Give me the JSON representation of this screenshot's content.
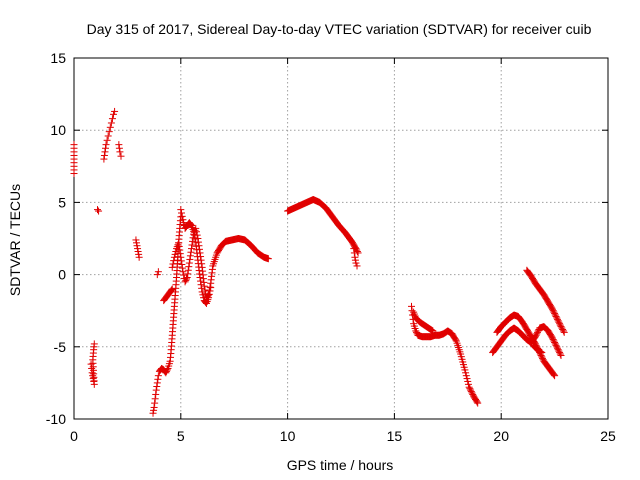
{
  "chart_data": {
    "type": "scatter",
    "title": "Day 315 of 2017, Sidereal Day-to-day VTEC variation (SDTVAR) for receiver cuib",
    "xlabel": "GPS time / hours",
    "ylabel": "SDTVAR / TECUs",
    "xlim": [
      0,
      25
    ],
    "ylim": [
      -10,
      15
    ],
    "xticks": [
      "0",
      "5",
      "10",
      "15",
      "20",
      "25"
    ],
    "yticks": [
      "15",
      "10",
      "5",
      "0",
      "-5",
      "-10"
    ],
    "grid": true,
    "marker": "plus",
    "color": "#e00000",
    "segments": [
      [
        [
          0.0,
          9.0
        ],
        [
          0.0,
          8.0
        ],
        [
          0.0,
          7.0
        ]
      ],
      [
        [
          0.8,
          -6.2
        ],
        [
          0.85,
          -6.8
        ],
        [
          0.9,
          -7.2
        ],
        [
          0.95,
          -7.6
        ],
        [
          0.88,
          -5.9
        ],
        [
          0.92,
          -5.2
        ],
        [
          0.95,
          -4.8
        ]
      ],
      [
        [
          1.1,
          4.5
        ],
        [
          1.15,
          4.4
        ]
      ],
      [
        [
          1.4,
          8.0
        ],
        [
          1.45,
          8.5
        ],
        [
          1.5,
          9.0
        ],
        [
          1.55,
          9.3
        ],
        [
          1.6,
          9.6
        ],
        [
          1.65,
          9.9
        ],
        [
          1.7,
          10.2
        ],
        [
          1.75,
          10.5
        ],
        [
          1.8,
          10.8
        ],
        [
          1.85,
          11.1
        ],
        [
          1.9,
          11.3
        ]
      ],
      [
        [
          2.1,
          9.0
        ],
        [
          2.15,
          8.5
        ],
        [
          2.2,
          8.2
        ]
      ],
      [
        [
          2.9,
          2.4
        ],
        [
          2.95,
          2.0
        ],
        [
          3.0,
          1.6
        ],
        [
          3.05,
          1.2
        ]
      ],
      [
        [
          3.7,
          -9.6
        ],
        [
          3.75,
          -9.2
        ],
        [
          3.8,
          -8.6
        ],
        [
          3.85,
          -8.0
        ],
        [
          3.9,
          -7.5
        ],
        [
          3.95,
          -7.0
        ],
        [
          4.0,
          -6.7
        ],
        [
          4.1,
          -6.5
        ],
        [
          4.2,
          -6.6
        ],
        [
          4.3,
          -6.8
        ],
        [
          4.4,
          -6.5
        ],
        [
          4.5,
          -6.0
        ],
        [
          4.55,
          -5.2
        ],
        [
          4.6,
          -4.2
        ],
        [
          4.65,
          -3.2
        ],
        [
          4.7,
          -2.2
        ],
        [
          4.75,
          -1.2
        ],
        [
          4.8,
          -0.2
        ],
        [
          4.85,
          1.0
        ],
        [
          4.9,
          2.2
        ],
        [
          4.95,
          3.2
        ],
        [
          5.0,
          4.0
        ]
      ],
      [
        [
          3.9,
          0.0
        ],
        [
          3.95,
          0.2
        ]
      ],
      [
        [
          4.2,
          -1.8
        ],
        [
          4.3,
          -1.6
        ],
        [
          4.4,
          -1.4
        ],
        [
          4.5,
          -1.2
        ],
        [
          4.6,
          -1.0
        ]
      ],
      [
        [
          4.6,
          0.5
        ],
        [
          4.7,
          1.2
        ],
        [
          4.8,
          1.8
        ],
        [
          4.9,
          2.2
        ],
        [
          5.0,
          1.2
        ],
        [
          5.1,
          0.2
        ],
        [
          5.2,
          -0.5
        ],
        [
          5.3,
          -0.2
        ],
        [
          5.4,
          0.8
        ],
        [
          5.5,
          1.8
        ],
        [
          5.6,
          2.8
        ],
        [
          5.7,
          3.2
        ],
        [
          5.8,
          2.5
        ],
        [
          5.9,
          1.5
        ],
        [
          6.0,
          0.5
        ],
        [
          6.1,
          -0.8
        ],
        [
          6.2,
          -1.6
        ],
        [
          6.3,
          -1.4
        ],
        [
          6.4,
          -0.6
        ],
        [
          6.5,
          0.6
        ],
        [
          6.7,
          1.5
        ],
        [
          6.9,
          2.0
        ],
        [
          7.1,
          2.3
        ],
        [
          7.4,
          2.4
        ],
        [
          7.7,
          2.5
        ],
        [
          8.0,
          2.4
        ],
        [
          8.3,
          2.0
        ],
        [
          8.6,
          1.5
        ],
        [
          8.9,
          1.2
        ],
        [
          9.1,
          1.1
        ]
      ],
      [
        [
          5.0,
          4.5
        ],
        [
          5.1,
          3.8
        ],
        [
          5.2,
          3.2
        ],
        [
          5.3,
          3.4
        ],
        [
          5.4,
          3.6
        ],
        [
          5.5,
          3.4
        ],
        [
          5.6,
          3.0
        ],
        [
          5.7,
          2.2
        ],
        [
          5.8,
          1.0
        ],
        [
          5.9,
          -0.2
        ],
        [
          6.0,
          -1.2
        ],
        [
          6.1,
          -1.8
        ],
        [
          6.2,
          -2.0
        ],
        [
          6.3,
          -1.6
        ],
        [
          6.4,
          -0.9
        ]
      ],
      [
        [
          10.0,
          4.4
        ],
        [
          10.3,
          4.6
        ],
        [
          10.6,
          4.8
        ],
        [
          10.9,
          5.0
        ],
        [
          11.2,
          5.2
        ],
        [
          11.5,
          5.0
        ],
        [
          11.8,
          4.6
        ],
        [
          12.1,
          4.0
        ],
        [
          12.4,
          3.4
        ],
        [
          12.7,
          2.9
        ],
        [
          13.0,
          2.3
        ],
        [
          13.2,
          1.8
        ],
        [
          13.3,
          1.5
        ]
      ],
      [
        [
          13.1,
          1.8
        ],
        [
          13.15,
          1.2
        ],
        [
          13.2,
          0.8
        ],
        [
          13.25,
          0.6
        ]
      ],
      [
        [
          15.8,
          -2.2
        ],
        [
          15.85,
          -2.8
        ],
        [
          15.9,
          -3.4
        ],
        [
          16.0,
          -3.9
        ],
        [
          16.1,
          -4.2
        ],
        [
          16.3,
          -4.3
        ],
        [
          16.5,
          -4.3
        ],
        [
          16.7,
          -4.3
        ],
        [
          16.9,
          -4.2
        ],
        [
          17.1,
          -4.2
        ],
        [
          17.3,
          -4.1
        ],
        [
          17.5,
          -3.9
        ],
        [
          17.7,
          -4.1
        ],
        [
          17.9,
          -4.6
        ],
        [
          18.1,
          -5.5
        ],
        [
          18.3,
          -6.6
        ],
        [
          18.5,
          -7.8
        ],
        [
          18.7,
          -8.4
        ],
        [
          18.9,
          -8.9
        ]
      ],
      [
        [
          15.9,
          -2.6
        ],
        [
          16.0,
          -3.0
        ],
        [
          16.2,
          -3.3
        ],
        [
          16.4,
          -3.5
        ],
        [
          16.6,
          -3.7
        ],
        [
          16.8,
          -3.9
        ]
      ],
      [
        [
          19.6,
          -5.4
        ],
        [
          19.8,
          -5.0
        ],
        [
          20.0,
          -4.6
        ],
        [
          20.2,
          -4.2
        ],
        [
          20.4,
          -3.9
        ],
        [
          20.6,
          -3.7
        ],
        [
          20.8,
          -3.9
        ],
        [
          21.0,
          -4.2
        ],
        [
          21.2,
          -4.5
        ],
        [
          21.4,
          -4.7
        ],
        [
          21.6,
          -4.3
        ],
        [
          21.8,
          -3.7
        ],
        [
          22.0,
          -3.6
        ],
        [
          22.2,
          -3.9
        ],
        [
          22.4,
          -4.4
        ],
        [
          22.6,
          -5.0
        ],
        [
          22.8,
          -5.6
        ]
      ],
      [
        [
          19.8,
          -4.0
        ],
        [
          20.0,
          -3.6
        ],
        [
          20.2,
          -3.3
        ],
        [
          20.4,
          -3.0
        ],
        [
          20.6,
          -2.8
        ],
        [
          20.8,
          -2.9
        ],
        [
          21.0,
          -3.3
        ],
        [
          21.2,
          -3.8
        ],
        [
          21.4,
          -4.3
        ],
        [
          21.6,
          -4.8
        ],
        [
          21.8,
          -5.4
        ],
        [
          22.0,
          -6.0
        ],
        [
          22.2,
          -6.4
        ],
        [
          22.4,
          -6.8
        ],
        [
          22.5,
          -7.0
        ]
      ],
      [
        [
          21.2,
          0.3
        ],
        [
          21.4,
          -0.1
        ],
        [
          21.6,
          -0.6
        ],
        [
          21.8,
          -1.0
        ],
        [
          22.0,
          -1.4
        ],
        [
          22.2,
          -1.9
        ],
        [
          22.4,
          -2.4
        ],
        [
          22.6,
          -3.0
        ],
        [
          22.8,
          -3.6
        ],
        [
          22.95,
          -4.0
        ]
      ],
      [
        [
          21.5,
          -4.9
        ],
        [
          21.7,
          -5.2
        ],
        [
          21.9,
          -5.4
        ]
      ]
    ]
  }
}
